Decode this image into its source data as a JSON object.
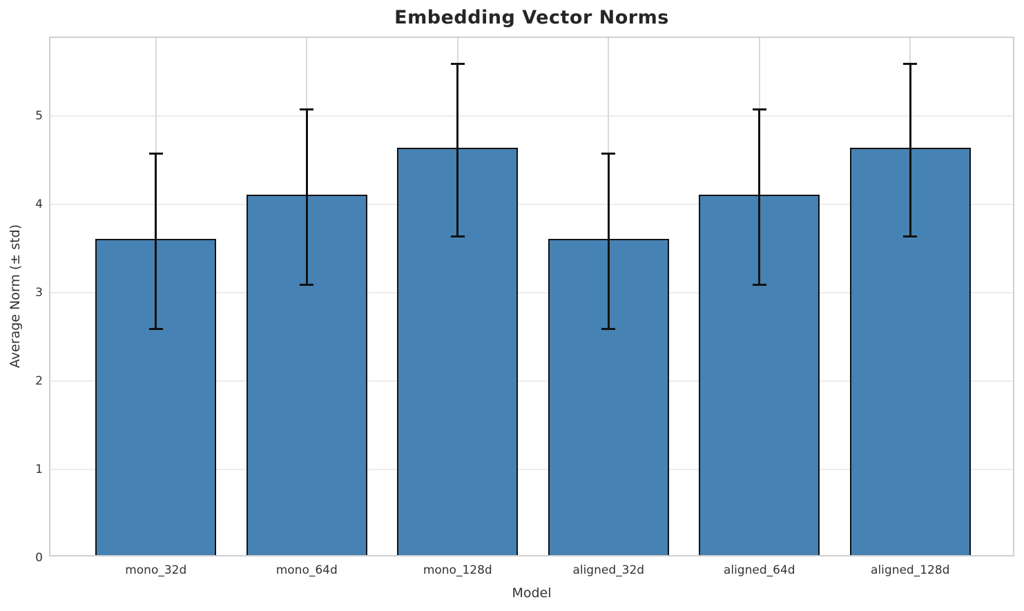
{
  "chart_data": {
    "type": "bar",
    "title": "Embedding Vector Norms",
    "xlabel": "Model",
    "ylabel": "Average Norm (± std)",
    "categories": [
      "mono_32d",
      "mono_64d",
      "mono_128d",
      "aligned_32d",
      "aligned_64d",
      "aligned_128d"
    ],
    "values": [
      3.58,
      4.08,
      4.61,
      3.58,
      4.08,
      4.61
    ],
    "errors": [
      1.0,
      1.0,
      0.99,
      1.0,
      1.0,
      0.99
    ],
    "yticks": [
      0,
      1,
      2,
      3,
      4,
      5
    ],
    "ylim": [
      0,
      5.88
    ],
    "grid": true,
    "legend": "none",
    "bar_color": "#4682b4",
    "bar_edge_color": "#111111",
    "error_color": "#111111",
    "grid_color_h": "#ececec",
    "grid_color_v": "#d9d9d9",
    "spine_color": "#cfcfcf",
    "background": "#ffffff"
  }
}
